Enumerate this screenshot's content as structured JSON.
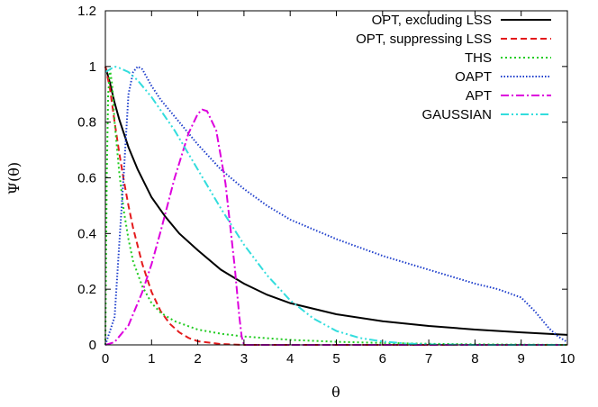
{
  "chart_data": {
    "type": "line",
    "xlabel": "θ",
    "ylabel": "Ψ(θ)",
    "xlim": [
      0,
      10
    ],
    "ylim": [
      0,
      1.2
    ],
    "xticks": [
      0,
      1,
      2,
      3,
      4,
      5,
      6,
      7,
      8,
      9,
      10
    ],
    "yticks": [
      0,
      0.2,
      0.4,
      0.6,
      0.8,
      1,
      1.2
    ],
    "xtick_labels": [
      "0",
      "1",
      "2",
      "3",
      "4",
      "5",
      "6",
      "7",
      "8",
      "9",
      "10"
    ],
    "ytick_labels": [
      "0",
      "0.2",
      "0.4",
      "0.6",
      "0.8",
      "1",
      "1.2"
    ],
    "grid": false,
    "legend_position": "top-right",
    "series": [
      {
        "name": "OPT, excluding LSS",
        "color": "#000000",
        "dash": "solid",
        "x": [
          0,
          0.1,
          0.2,
          0.3,
          0.5,
          0.7,
          1,
          1.3,
          1.6,
          2,
          2.5,
          3,
          3.5,
          4,
          5,
          6,
          7,
          8,
          9,
          10
        ],
        "y": [
          1,
          0.94,
          0.87,
          0.81,
          0.71,
          0.63,
          0.53,
          0.46,
          0.4,
          0.34,
          0.27,
          0.22,
          0.18,
          0.15,
          0.11,
          0.085,
          0.068,
          0.055,
          0.045,
          0.036
        ]
      },
      {
        "name": "OPT, suppressing LSS",
        "color": "#e41a1c",
        "dash": "dashed",
        "x": [
          0,
          0.1,
          0.2,
          0.3,
          0.4,
          0.5,
          0.6,
          0.8,
          1,
          1.2,
          1.4,
          1.6,
          1.8,
          2,
          2.5,
          3,
          10
        ],
        "y": [
          1,
          0.92,
          0.8,
          0.69,
          0.59,
          0.5,
          0.42,
          0.29,
          0.19,
          0.12,
          0.075,
          0.045,
          0.025,
          0.013,
          0.003,
          0,
          0
        ]
      },
      {
        "name": "THS",
        "color": "#22cc22",
        "dash": "dotted",
        "x": [
          0,
          0.03,
          0.06,
          0.1,
          0.15,
          0.2,
          0.3,
          0.4,
          0.5,
          0.6,
          0.8,
          1,
          1.2,
          1.5,
          2,
          2.5,
          3,
          4,
          5,
          6,
          7,
          8,
          10
        ],
        "y": [
          0,
          0.6,
          0.9,
          0.99,
          0.93,
          0.8,
          0.62,
          0.48,
          0.38,
          0.3,
          0.21,
          0.15,
          0.115,
          0.085,
          0.055,
          0.04,
          0.03,
          0.018,
          0.011,
          0.007,
          0.004,
          0.002,
          0
        ]
      },
      {
        "name": "OAPT",
        "color": "#1f3fcc",
        "dash": "dotted-fine",
        "x": [
          0,
          0.2,
          0.4,
          0.5,
          0.6,
          0.7,
          0.8,
          0.9,
          1,
          1.2,
          1.5,
          2,
          2.5,
          3,
          3.5,
          4,
          5,
          6,
          7,
          8,
          8.5,
          9,
          9.3,
          9.6,
          9.8,
          10
        ],
        "y": [
          0,
          0.1,
          0.62,
          0.9,
          0.98,
          1.0,
          0.99,
          0.96,
          0.93,
          0.88,
          0.82,
          0.72,
          0.63,
          0.56,
          0.5,
          0.45,
          0.38,
          0.32,
          0.27,
          0.22,
          0.2,
          0.17,
          0.12,
          0.06,
          0.03,
          0.01
        ]
      },
      {
        "name": "APT",
        "color": "#dd00dd",
        "dash": "dashdot",
        "x": [
          0,
          0.2,
          0.5,
          0.8,
          1,
          1.2,
          1.5,
          1.8,
          2,
          2.1,
          2.2,
          2.4,
          2.6,
          2.8,
          2.9,
          2.95,
          3,
          10
        ],
        "y": [
          0,
          0.01,
          0.07,
          0.19,
          0.29,
          0.41,
          0.6,
          0.76,
          0.83,
          0.845,
          0.84,
          0.77,
          0.58,
          0.28,
          0.1,
          0.03,
          0,
          0
        ]
      },
      {
        "name": "GAUSSIAN",
        "color": "#33dddd",
        "dash": "dashdotdot",
        "x": [
          0,
          0.1,
          0.2,
          0.3,
          0.5,
          0.7,
          1,
          1.5,
          2,
          2.5,
          3,
          3.5,
          4,
          4.5,
          5,
          5.5,
          6,
          6.5,
          7,
          8,
          10
        ],
        "y": [
          0.98,
          0.99,
          1.0,
          0.995,
          0.98,
          0.95,
          0.89,
          0.77,
          0.63,
          0.49,
          0.36,
          0.25,
          0.16,
          0.095,
          0.05,
          0.025,
          0.012,
          0.005,
          0.002,
          0,
          0
        ]
      }
    ]
  }
}
